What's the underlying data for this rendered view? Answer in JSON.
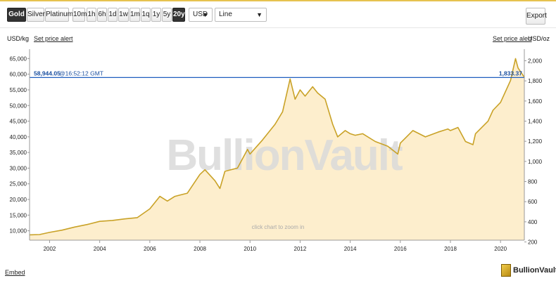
{
  "toolbar": {
    "metals": [
      "Gold",
      "Silver",
      "Platinum"
    ],
    "active_metal": "Gold",
    "ranges": [
      "10m",
      "1h",
      "6h",
      "1d",
      "1w",
      "1m",
      "1q",
      "1y",
      "5y",
      "20y"
    ],
    "active_range": "20y",
    "currency": "USD",
    "chart_style": "Line",
    "export_label": "Export"
  },
  "header": {
    "left_unit": "USD/kg",
    "right_unit": "USD/oz",
    "price_alert_label": "Set price alert"
  },
  "watermark": "BullionVault",
  "zoom_hint": "click chart to zoom in",
  "embed_label": "Embed",
  "brand_name": "BullionVault",
  "colors": {
    "line": "#c9a227",
    "fill": "#fdebc4",
    "price_line": "#1f5fbf",
    "active_button": "#333333"
  },
  "chart_data": {
    "type": "area",
    "title": "",
    "xlabel": "",
    "ylabel_left": "USD/kg",
    "ylabel_right": "USD/oz",
    "x_ticks": [
      "2002",
      "2004",
      "2006",
      "2008",
      "2010",
      "2012",
      "2014",
      "2016",
      "2018",
      "2020"
    ],
    "y_left_ticks": [
      "10,000",
      "15,000",
      "20,000",
      "25,000",
      "30,000",
      "35,000",
      "40,000",
      "45,000",
      "50,000",
      "55,000",
      "60,000",
      "65,000"
    ],
    "y_right_ticks": [
      "200",
      "400",
      "600",
      "800",
      "1,000",
      "1,200",
      "1,400",
      "1,600",
      "1,800",
      "2,000"
    ],
    "ylim_left": [
      7000,
      68000
    ],
    "xlim": [
      2001.2,
      2020.95
    ],
    "current_price": {
      "per_kg": "58,944.05",
      "time": "@16:52:12 GMT",
      "per_oz": "1,833.37",
      "value_kg": 58944
    },
    "series": [
      {
        "x": [
          2001.2,
          2001.6,
          2002.0,
          2002.5,
          2003.0,
          2003.5,
          2004.0,
          2004.5,
          2005.0,
          2005.5,
          2006.0,
          2006.4,
          2006.7,
          2007.0,
          2007.5,
          2008.0,
          2008.2,
          2008.6,
          2008.8,
          2009.0,
          2009.5,
          2009.9,
          2010.0,
          2010.5,
          2011.0,
          2011.3,
          2011.6,
          2011.8,
          2012.0,
          2012.2,
          2012.5,
          2012.7,
          2013.0,
          2013.3,
          2013.5,
          2013.8,
          2014.0,
          2014.2,
          2014.5,
          2015.0,
          2015.5,
          2015.9,
          2016.0,
          2016.5,
          2017.0,
          2017.5,
          2017.9,
          2018.0,
          2018.3,
          2018.6,
          2018.9,
          2019.0,
          2019.5,
          2019.7,
          2020.0,
          2020.2,
          2020.4,
          2020.6,
          2020.7,
          2020.95
        ],
        "values": [
          8700,
          8800,
          9500,
          10200,
          11200,
          12000,
          13000,
          13300,
          13800,
          14200,
          17000,
          21000,
          19500,
          21000,
          22000,
          28000,
          29500,
          26000,
          23500,
          29000,
          30000,
          36000,
          34500,
          39000,
          44000,
          48000,
          58500,
          52000,
          55000,
          53000,
          56000,
          54000,
          52000,
          44000,
          40000,
          42000,
          41000,
          40500,
          41000,
          38500,
          37000,
          34500,
          38000,
          42000,
          40000,
          41500,
          42500,
          42000,
          43000,
          38500,
          37500,
          41000,
          45000,
          48500,
          51000,
          54500,
          58000,
          65000,
          62000,
          59000
        ]
      }
    ]
  }
}
